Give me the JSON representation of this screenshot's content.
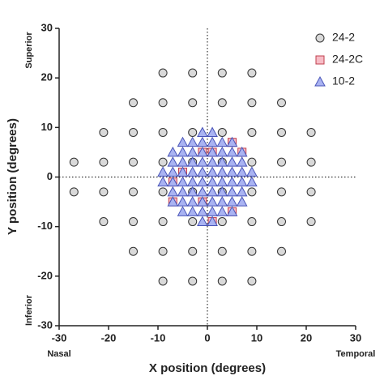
{
  "chart_data": {
    "type": "scatter",
    "xlabel": "X position (degrees)",
    "ylabel": "Y position (degrees)",
    "annotations": {
      "top": "Superior",
      "bottom": "Inferior",
      "left": "Nasal",
      "right": "Temporal"
    },
    "xlim": [
      -30,
      30
    ],
    "ylim": [
      -30,
      30
    ],
    "xticks": [
      -30,
      -20,
      -10,
      0,
      10,
      20,
      30
    ],
    "yticks": [
      -30,
      -20,
      -10,
      0,
      10,
      20,
      30
    ],
    "zero_lines": true,
    "legend": "upper right",
    "series": [
      {
        "name": "24-2",
        "marker": "circle",
        "color": "#d9d9d9",
        "edgecolor": "#333333",
        "x": [
          -9,
          -3,
          3,
          9,
          -15,
          -9,
          -3,
          3,
          9,
          15,
          -21,
          -15,
          -9,
          -3,
          3,
          9,
          15,
          21,
          -27,
          -21,
          -15,
          -9,
          -3,
          3,
          9,
          15,
          21,
          -27,
          -21,
          -15,
          -9,
          -3,
          3,
          9,
          15,
          21,
          -21,
          -15,
          -9,
          -3,
          3,
          9,
          15,
          21,
          -15,
          -9,
          -3,
          3,
          9,
          15,
          -9,
          -3,
          3,
          9
        ],
        "y": [
          21,
          21,
          21,
          21,
          15,
          15,
          15,
          15,
          15,
          15,
          9,
          9,
          9,
          9,
          9,
          9,
          9,
          9,
          3,
          3,
          3,
          3,
          3,
          3,
          3,
          3,
          3,
          -3,
          -3,
          -3,
          -3,
          -3,
          -3,
          -3,
          -3,
          -3,
          -9,
          -9,
          -9,
          -9,
          -9,
          -9,
          -9,
          -9,
          -15,
          -15,
          -15,
          -15,
          -15,
          -15,
          -21,
          -21,
          -21,
          -21
        ]
      },
      {
        "name": "24-2C",
        "marker": "square",
        "color": "#f7bcc6",
        "edgecolor": "#c0404f",
        "x": [
          -1,
          1,
          5,
          7,
          -5,
          -7,
          -7,
          -1,
          5,
          1
        ],
        "y": [
          5,
          5,
          7,
          5,
          1,
          -1,
          -5,
          -5,
          -7,
          -9
        ]
      },
      {
        "name": "10-2",
        "marker": "triangle",
        "color": "#a9b3f2",
        "edgecolor": "#4a55b8",
        "x": [
          -1,
          1,
          -5,
          -3,
          -1,
          1,
          3,
          5,
          -7,
          -5,
          -3,
          -1,
          1,
          3,
          5,
          7,
          -7,
          -5,
          -3,
          -1,
          1,
          3,
          5,
          7,
          -9,
          -7,
          -5,
          -3,
          -1,
          1,
          3,
          5,
          7,
          9,
          -9,
          -7,
          -5,
          -3,
          -1,
          1,
          3,
          5,
          7,
          9,
          -7,
          -5,
          -3,
          -1,
          1,
          3,
          5,
          7,
          -7,
          -5,
          -3,
          -1,
          1,
          3,
          5,
          7,
          -5,
          -3,
          -1,
          1,
          3,
          5,
          -1,
          1
        ],
        "y": [
          9,
          9,
          7,
          7,
          7,
          7,
          7,
          7,
          5,
          5,
          5,
          5,
          5,
          5,
          5,
          5,
          3,
          3,
          3,
          3,
          3,
          3,
          3,
          3,
          1,
          1,
          1,
          1,
          1,
          1,
          1,
          1,
          1,
          1,
          -1,
          -1,
          -1,
          -1,
          -1,
          -1,
          -1,
          -1,
          -1,
          -1,
          -3,
          -3,
          -3,
          -3,
          -3,
          -3,
          -3,
          -3,
          -5,
          -5,
          -5,
          -5,
          -5,
          -5,
          -5,
          -5,
          -7,
          -7,
          -7,
          -7,
          -7,
          -7,
          -9,
          -9
        ]
      }
    ]
  }
}
